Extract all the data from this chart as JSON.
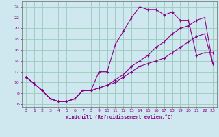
{
  "xlabel": "Windchill (Refroidissement éolien,°C)",
  "bg_color": "#cfe8ef",
  "line_color": "#880088",
  "grid_color": "#99ccbb",
  "xlim": [
    -0.5,
    23.5
  ],
  "ylim": [
    5.5,
    25
  ],
  "xticks": [
    0,
    1,
    2,
    3,
    4,
    5,
    6,
    7,
    8,
    9,
    10,
    11,
    12,
    13,
    14,
    15,
    16,
    17,
    18,
    19,
    20,
    21,
    22,
    23
  ],
  "yticks": [
    6,
    8,
    10,
    12,
    14,
    16,
    18,
    20,
    22,
    24
  ],
  "curve1_x": [
    0,
    1,
    2,
    3,
    4,
    5,
    6,
    7,
    8,
    9,
    10,
    11,
    12,
    13,
    14,
    15,
    16,
    17,
    18,
    19,
    20,
    21,
    22,
    23
  ],
  "curve1_y": [
    11,
    9.8,
    8.5,
    7,
    6.5,
    6.5,
    7,
    8.5,
    8.5,
    12,
    12,
    17,
    19.5,
    22,
    24,
    23.5,
    23.5,
    22.5,
    23,
    21.5,
    21.5,
    15,
    15.5,
    15.5
  ],
  "curve2_x": [
    0,
    1,
    2,
    3,
    4,
    5,
    6,
    7,
    8,
    9,
    10,
    11,
    12,
    13,
    14,
    15,
    16,
    17,
    18,
    19,
    20,
    21,
    22,
    23
  ],
  "curve2_y": [
    11,
    9.8,
    8.5,
    7,
    6.5,
    6.5,
    7,
    8.5,
    8.5,
    9.0,
    9.5,
    10.5,
    11.5,
    13.0,
    14.0,
    15.0,
    16.5,
    17.5,
    19.0,
    20.0,
    20.5,
    21.5,
    22.0,
    13.5
  ],
  "curve3_x": [
    0,
    1,
    2,
    3,
    4,
    5,
    6,
    7,
    8,
    9,
    10,
    11,
    12,
    13,
    14,
    15,
    16,
    17,
    18,
    19,
    20,
    21,
    22,
    23
  ],
  "curve3_y": [
    11,
    9.8,
    8.5,
    7,
    6.5,
    6.5,
    7,
    8.5,
    8.5,
    9.0,
    9.5,
    10.0,
    11.0,
    12.0,
    13.0,
    13.5,
    14.0,
    14.5,
    15.5,
    16.5,
    17.5,
    18.5,
    19.0,
    13.5
  ]
}
